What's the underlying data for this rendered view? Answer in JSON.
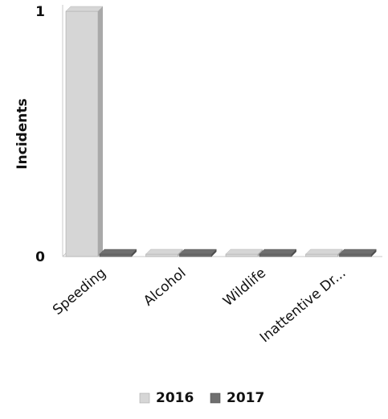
{
  "chart_data": {
    "type": "bar",
    "categories": [
      "Speeding",
      "Alcohol",
      "Wildlife",
      "Inattentive Dr..."
    ],
    "series": [
      {
        "name": "2016",
        "values": [
          1,
          0,
          0,
          0
        ]
      },
      {
        "name": "2017",
        "values": [
          0,
          0,
          0,
          0
        ]
      }
    ],
    "xlabel": "",
    "ylabel": "Incidents",
    "ylim": [
      0,
      1
    ],
    "yticks": [
      "0",
      "1"
    ],
    "legend_position": "bottom",
    "grid": false,
    "style": "3d",
    "colors": {
      "2016": "#d6d6d6",
      "2016_side": "#a9a9a9",
      "2017": "#6f6f6f",
      "2017_side": "#4e4e4e",
      "axis": "#c8c8c8",
      "text": "#111111"
    }
  }
}
